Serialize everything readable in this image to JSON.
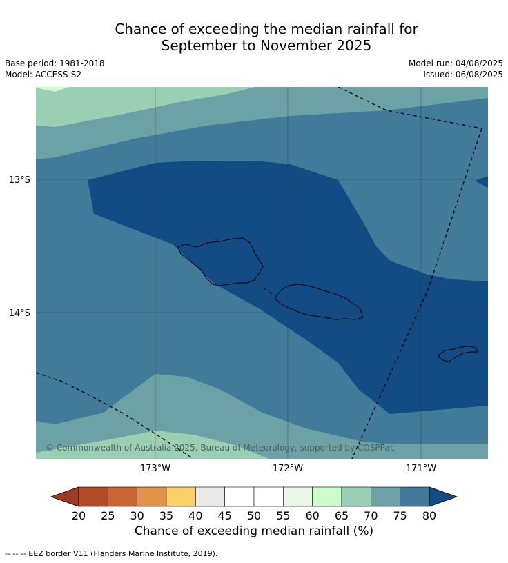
{
  "title": {
    "line1": "Chance of exceeding the median rainfall for",
    "line2": "September to November 2025"
  },
  "meta": {
    "base_period": "Base period: 1981-2018",
    "model": "Model: ACCESS-S2",
    "model_run": "Model run: 04/08/2025",
    "issued": "Issued: 06/08/2025"
  },
  "map": {
    "lat_labels": [
      "13°S",
      "14°S"
    ],
    "lon_labels": [
      "173°W",
      "172°W",
      "171°W"
    ],
    "copyright": "© Commonwealth of Australia 2025, Bureau of Meteorology, supported by COSPPac"
  },
  "colorbar": {
    "ticks": [
      "20",
      "25",
      "30",
      "35",
      "40",
      "45",
      "50",
      "55",
      "60",
      "65",
      "70",
      "75",
      "80"
    ],
    "colors": [
      "#b24a26",
      "#cc6633",
      "#e09447",
      "#fccf6a",
      "#ece8e3",
      "#ffffff",
      "#ffffff",
      "#e9f6e8",
      "#cbfcca",
      "#9bcfb4",
      "#6ca2a5",
      "#427a99"
    ],
    "under_color": "#9b3b21",
    "over_color": "#134c85",
    "label": "Chance of exceeding median rainfall (%)"
  },
  "footnote": "--  --  -- EEZ border V11 (Flanders Marine Institute, 2019)."
}
